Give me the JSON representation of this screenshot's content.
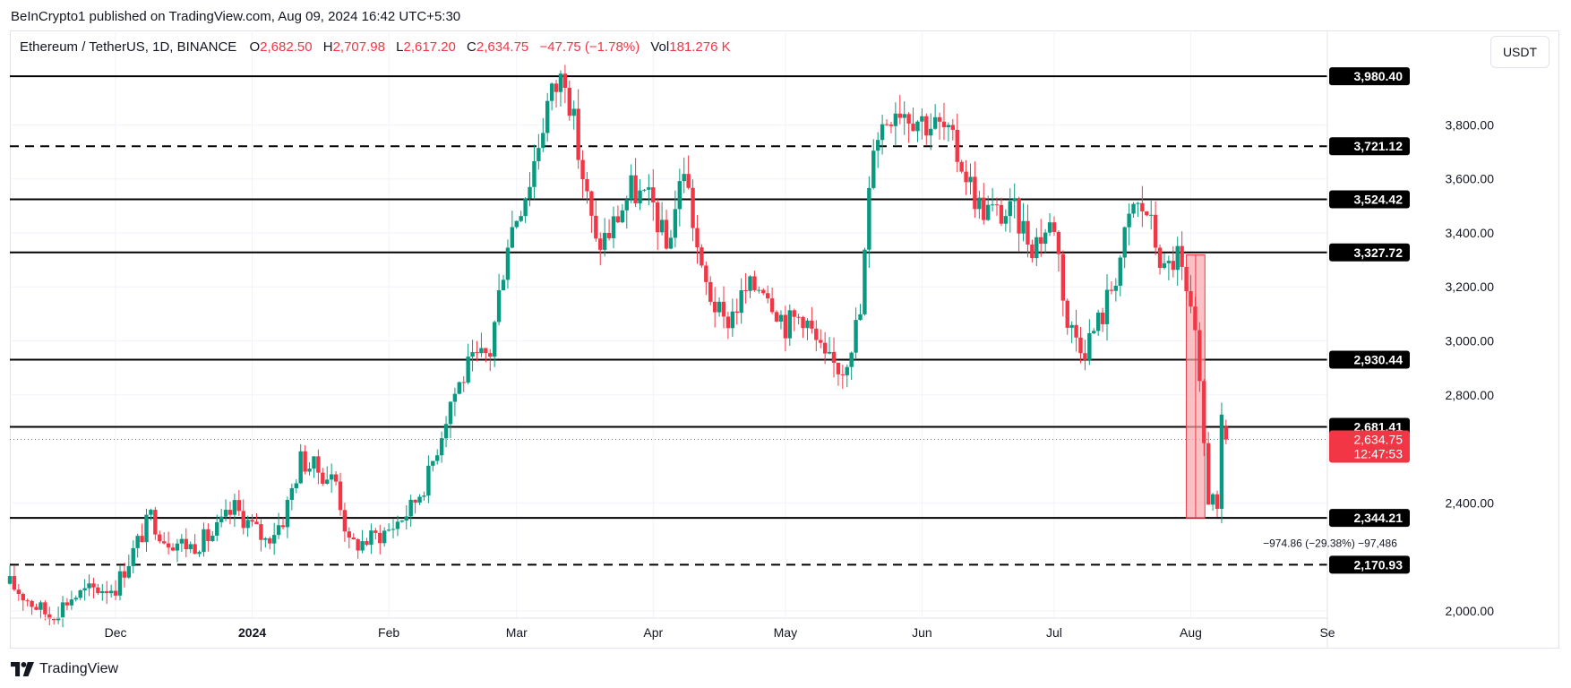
{
  "header": {
    "published": "BeInCrypto1 published on TradingView.com, Aug 09, 2024 16:42 UTC+5:30"
  },
  "legend": {
    "symbol": "Ethereum / TetherUS, 1D, BINANCE",
    "o_label": "O",
    "o_value": "2,682.50",
    "h_label": "H",
    "h_value": "2,707.98",
    "l_label": "L",
    "l_value": "2,617.20",
    "c_label": "C",
    "c_value": "2,634.75",
    "change": "−47.75 (−1.78%)",
    "vol_label": "Vol",
    "vol_value": "181.276 K"
  },
  "currency_button": "USDT",
  "footer": {
    "brand": "TradingView"
  },
  "colors": {
    "up": "#089981",
    "down": "#f23645",
    "grid": "#f0f3fa",
    "level_line": "#000000",
    "measure_fill": "#f7a8ad"
  },
  "icons": {
    "brand_logo": "tradingview-logo-icon"
  },
  "chart_data": {
    "type": "candlestick",
    "symbol": "Ethereum / TetherUS",
    "timeframe": "1D",
    "exchange": "BINANCE",
    "y_axis": {
      "ticks": [
        "2,000.00",
        "2,400.00",
        "2,800.00",
        "3,000.00",
        "3,200.00",
        "3,400.00",
        "3,600.00",
        "3,800.00"
      ],
      "tick_values": [
        2000,
        2400,
        2800,
        3000,
        3200,
        3400,
        3600,
        3800
      ],
      "range": [
        1860,
        4150
      ]
    },
    "x_axis": {
      "ticks": [
        "Dec",
        "2024",
        "Feb",
        "Mar",
        "Apr",
        "May",
        "Jun",
        "Jul",
        "Aug",
        "Se"
      ],
      "tick_dates": [
        "2023-12-01",
        "2024-01-01",
        "2024-02-01",
        "2024-03-01",
        "2024-04-01",
        "2024-05-01",
        "2024-06-01",
        "2024-07-01",
        "2024-08-01",
        "2024-09-01"
      ],
      "range": [
        "2023-11-07",
        "2024-09-01"
      ]
    },
    "levels": [
      {
        "value": 3980.4,
        "label": "3,980.40",
        "style": "solid"
      },
      {
        "value": 3721.12,
        "label": "3,721.12",
        "style": "dashed"
      },
      {
        "value": 3524.42,
        "label": "3,524.42",
        "style": "solid"
      },
      {
        "value": 3327.72,
        "label": "3,327.72",
        "style": "solid"
      },
      {
        "value": 2930.44,
        "label": "2,930.44",
        "style": "solid"
      },
      {
        "value": 2681.41,
        "label": "2,681.41",
        "style": "solid"
      },
      {
        "value": 2344.21,
        "label": "2,344.21",
        "style": "solid"
      },
      {
        "value": 2170.93,
        "label": "2,170.93",
        "style": "dashed"
      }
    ],
    "last_price": {
      "value": 2634.75,
      "label": "2,634.75",
      "countdown": "12:47:53"
    },
    "measure": {
      "from_date": "2024-07-31",
      "to_date": "2024-08-04",
      "top": 3318.6,
      "bottom": 2343.7,
      "label": "−974.86 (−29.38%) −97,486"
    },
    "trend_points": [
      [
        "2023-11-07",
        2100
      ],
      [
        "2023-11-12",
        2030
      ],
      [
        "2023-11-16",
        1980
      ],
      [
        "2023-11-21",
        2050
      ],
      [
        "2023-11-26",
        2080
      ],
      [
        "2023-12-01",
        2090
      ],
      [
        "2023-12-05",
        2220
      ],
      [
        "2023-12-09",
        2350
      ],
      [
        "2023-12-12",
        2270
      ],
      [
        "2023-12-18",
        2240
      ],
      [
        "2023-12-23",
        2280
      ],
      [
        "2023-12-28",
        2380
      ],
      [
        "2024-01-04",
        2260
      ],
      [
        "2024-01-08",
        2340
      ],
      [
        "2024-01-12",
        2560
      ],
      [
        "2024-01-15",
        2530
      ],
      [
        "2024-01-20",
        2480
      ],
      [
        "2024-01-23",
        2240
      ],
      [
        "2024-01-27",
        2260
      ],
      [
        "2024-02-01",
        2300
      ],
      [
        "2024-02-06",
        2380
      ],
      [
        "2024-02-10",
        2500
      ],
      [
        "2024-02-15",
        2780
      ],
      [
        "2024-02-19",
        2900
      ],
      [
        "2024-02-24",
        2960
      ],
      [
        "2024-02-28",
        3380
      ],
      [
        "2024-03-04",
        3600
      ],
      [
        "2024-03-08",
        3880
      ],
      [
        "2024-03-12",
        4000
      ],
      [
        "2024-03-15",
        3700
      ],
      [
        "2024-03-19",
        3350
      ],
      [
        "2024-03-22",
        3400
      ],
      [
        "2024-03-27",
        3560
      ],
      [
        "2024-04-01",
        3500
      ],
      [
        "2024-04-04",
        3340
      ],
      [
        "2024-04-08",
        3650
      ],
      [
        "2024-04-12",
        3240
      ],
      [
        "2024-04-17",
        3060
      ],
      [
        "2024-04-22",
        3180
      ],
      [
        "2024-04-26",
        3220
      ],
      [
        "2024-05-01",
        3060
      ],
      [
        "2024-05-05",
        3100
      ],
      [
        "2024-05-10",
        2920
      ],
      [
        "2024-05-14",
        2900
      ],
      [
        "2024-05-18",
        3100
      ],
      [
        "2024-05-21",
        3750
      ],
      [
        "2024-05-26",
        3880
      ],
      [
        "2024-06-01",
        3820
      ],
      [
        "2024-06-06",
        3780
      ],
      [
        "2024-06-10",
        3660
      ],
      [
        "2024-06-14",
        3500
      ],
      [
        "2024-06-18",
        3470
      ],
      [
        "2024-06-22",
        3470
      ],
      [
        "2024-06-26",
        3360
      ],
      [
        "2024-07-01",
        3440
      ],
      [
        "2024-07-04",
        3060
      ],
      [
        "2024-07-08",
        2980
      ],
      [
        "2024-07-12",
        3100
      ],
      [
        "2024-07-15",
        3250
      ],
      [
        "2024-07-19",
        3500
      ],
      [
        "2024-07-22",
        3480
      ],
      [
        "2024-07-26",
        3250
      ],
      [
        "2024-07-29",
        3320
      ],
      [
        "2024-08-02",
        3000
      ],
      [
        "2024-08-05",
        2420
      ],
      [
        "2024-08-06",
        2460
      ],
      [
        "2024-08-07",
        2340
      ],
      [
        "2024-08-08",
        2682.5
      ],
      [
        "2024-08-09",
        2634.75
      ]
    ]
  }
}
